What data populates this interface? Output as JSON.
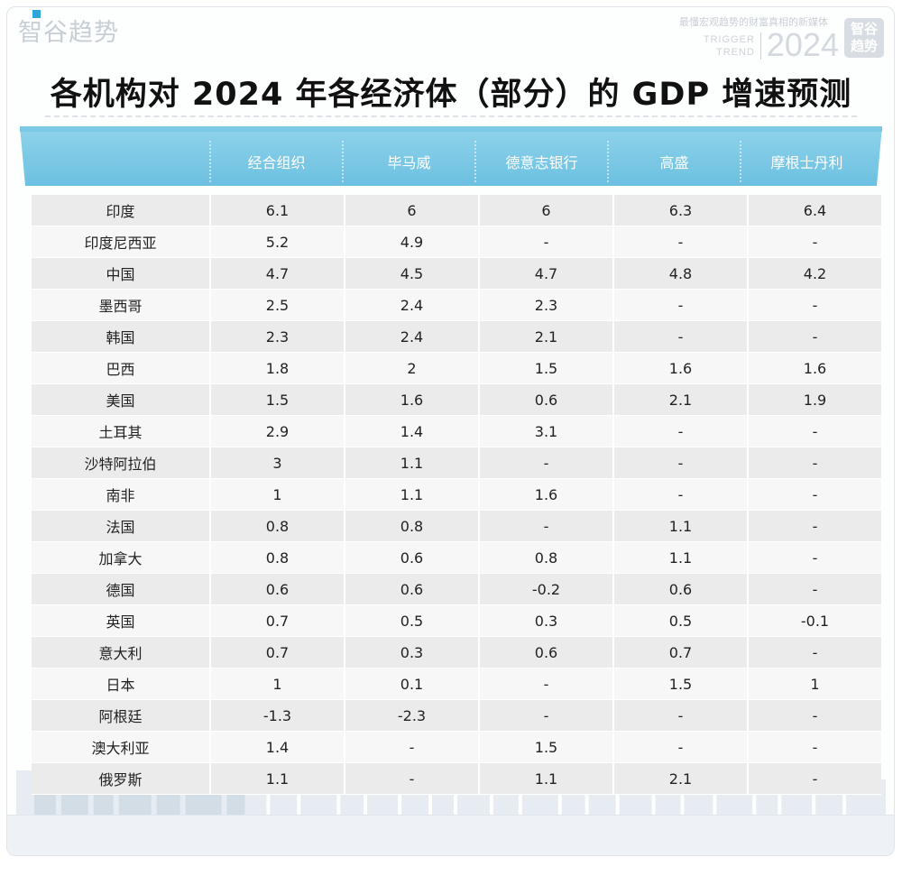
{
  "brand": {
    "name": "智谷趋势"
  },
  "watermark": {
    "slogan": "最懂宏观趋势的财富真相的新媒体",
    "english": "TRIGGER\nTREND",
    "year": "2024",
    "badge": "智谷趋势"
  },
  "colors": {
    "header": "#7fcbe6",
    "header_dark": "#5ab6da",
    "row_odd": "#ebebeb",
    "row_even": "#f7f7f7"
  },
  "chart_data": {
    "type": "table",
    "title": "各机构对 2024 年各经济体（部分）的 GDP 增速预测",
    "columns": [
      "",
      "经合组织",
      "毕马威",
      "德意志银行",
      "高盛",
      "摩根士丹利"
    ],
    "rows": [
      {
        "economy": "印度",
        "values": [
          "6.1",
          "6",
          "6",
          "6.3",
          "6.4"
        ]
      },
      {
        "economy": "印度尼西亚",
        "values": [
          "5.2",
          "4.9",
          "-",
          "-",
          "-"
        ]
      },
      {
        "economy": "中国",
        "values": [
          "4.7",
          "4.5",
          "4.7",
          "4.8",
          "4.2"
        ]
      },
      {
        "economy": "墨西哥",
        "values": [
          "2.5",
          "2.4",
          "2.3",
          "-",
          "-"
        ]
      },
      {
        "economy": "韩国",
        "values": [
          "2.3",
          "2.4",
          "2.1",
          "-",
          "-"
        ]
      },
      {
        "economy": "巴西",
        "values": [
          "1.8",
          "2",
          "1.5",
          "1.6",
          "1.6"
        ]
      },
      {
        "economy": "美国",
        "values": [
          "1.5",
          "1.6",
          "0.6",
          "2.1",
          "1.9"
        ]
      },
      {
        "economy": "土耳其",
        "values": [
          "2.9",
          "1.4",
          "3.1",
          "-",
          "-"
        ]
      },
      {
        "economy": "沙特阿拉伯",
        "values": [
          "3",
          "1.1",
          "-",
          "-",
          "-"
        ]
      },
      {
        "economy": "南非",
        "values": [
          "1",
          "1.1",
          "1.6",
          "-",
          "-"
        ]
      },
      {
        "economy": "法国",
        "values": [
          "0.8",
          "0.8",
          "-",
          "1.1",
          "-"
        ]
      },
      {
        "economy": "加拿大",
        "values": [
          "0.8",
          "0.6",
          "0.8",
          "1.1",
          "-"
        ]
      },
      {
        "economy": "德国",
        "values": [
          "0.6",
          "0.6",
          "-0.2",
          "0.6",
          "-"
        ]
      },
      {
        "economy": "英国",
        "values": [
          "0.7",
          "0.5",
          "0.3",
          "0.5",
          "-0.1"
        ]
      },
      {
        "economy": "意大利",
        "values": [
          "0.7",
          "0.3",
          "0.6",
          "0.7",
          "-"
        ]
      },
      {
        "economy": "日本",
        "values": [
          "1",
          "0.1",
          "-",
          "1.5",
          "1"
        ]
      },
      {
        "economy": "阿根廷",
        "values": [
          "-1.3",
          "-2.3",
          "-",
          "-",
          "-"
        ]
      },
      {
        "economy": "澳大利亚",
        "values": [
          "1.4",
          "-",
          "1.5",
          "-",
          "-"
        ]
      },
      {
        "economy": "俄罗斯",
        "values": [
          "1.1",
          "-",
          "1.1",
          "2.1",
          "-"
        ]
      }
    ]
  }
}
